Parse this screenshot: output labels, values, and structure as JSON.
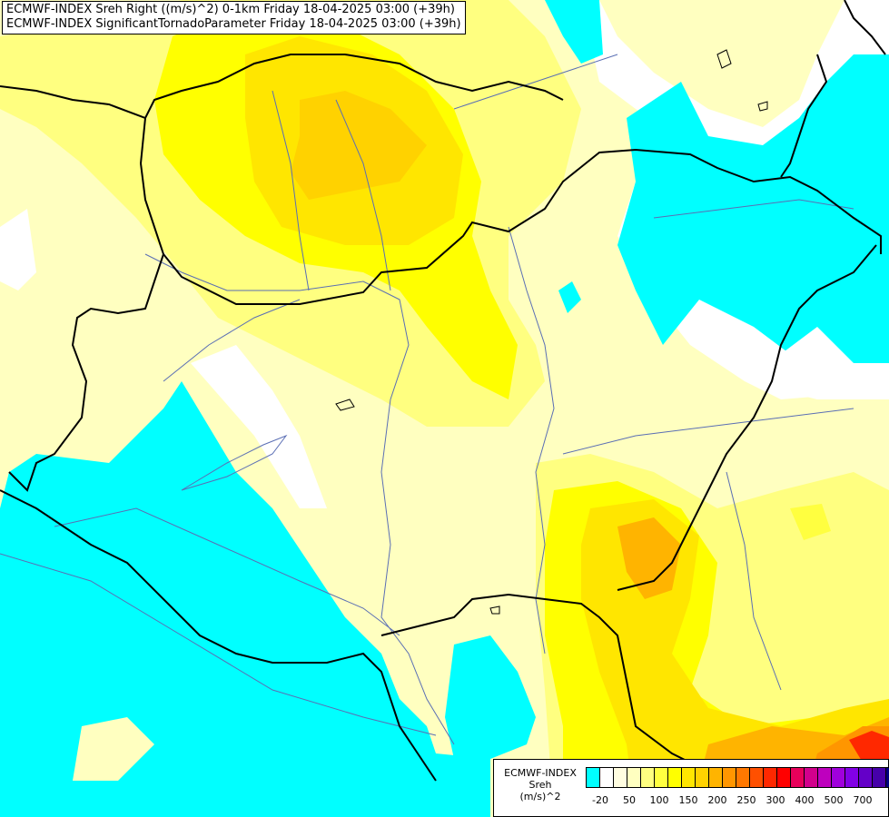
{
  "title_lines": [
    "ECMWF-INDEX Sreh Right ((m/s)^2) 0-1km Friday 18-04-2025 03:00 (+39h)",
    "ECMWF-INDEX SignificantTornadoParameter Friday 18-04-2025 03:00 (+39h)"
  ],
  "legend": {
    "line1": "ECMWF-INDEX",
    "line2": "Sreh",
    "line3": "(m/s)^2",
    "ticks": [
      "-20",
      "50",
      "100",
      "150",
      "200",
      "250",
      "300",
      "400",
      "500",
      "700"
    ],
    "colors": [
      "#00ffff",
      "#ffffff",
      "#fffde0",
      "#ffffc0",
      "#ffff80",
      "#ffff40",
      "#ffff00",
      "#ffe600",
      "#ffd200",
      "#ffb400",
      "#ff9600",
      "#ff7800",
      "#ff5000",
      "#ff2800",
      "#ff0000",
      "#e8005a",
      "#d2008c",
      "#be00be",
      "#a000dc",
      "#8200e6",
      "#6400c8",
      "#4600aa",
      "#000080"
    ]
  },
  "map_colors": {
    "cyan": "#00ffff",
    "pale_yellow": "#ffffc0",
    "light_yellow": "#ffff80",
    "yellow": "#ffff00",
    "gold": "#ffe600",
    "orange": "#ffb400",
    "dark_orange": "#ff9600",
    "red": "#ff2800",
    "border": "#000000",
    "river": "#5a6eb4"
  }
}
